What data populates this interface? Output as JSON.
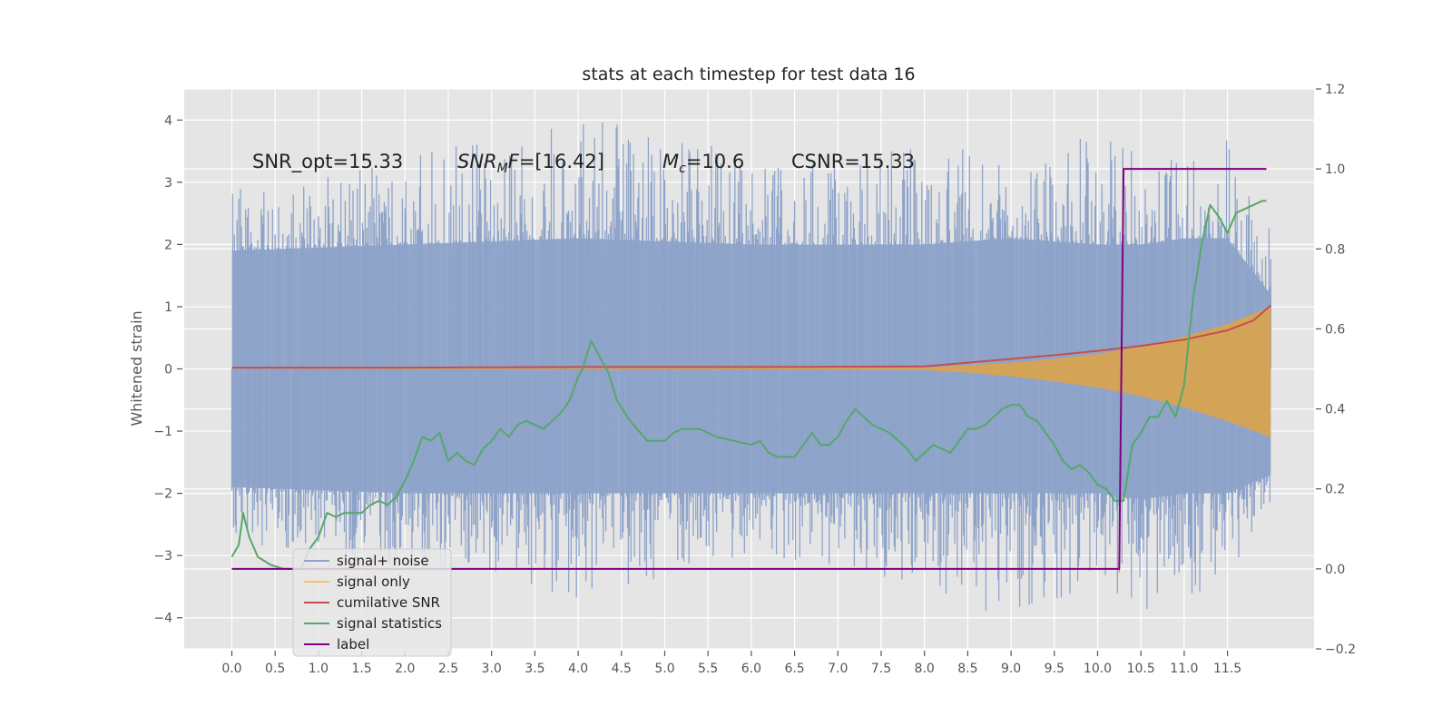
{
  "chart_data": {
    "type": "line",
    "title": "stats at each timestep for test data 16",
    "ylabel": "Whitened strain",
    "ylabel_right": "",
    "xlim": [
      -0.55,
      12.5
    ],
    "ylim": [
      -4.5,
      4.5
    ],
    "ylim_right": [
      -0.2,
      1.2
    ],
    "x_ticks": [
      0.0,
      0.5,
      1.0,
      1.5,
      2.0,
      2.5,
      3.0,
      3.5,
      4.0,
      4.5,
      5.0,
      5.5,
      6.0,
      6.5,
      7.0,
      7.5,
      8.0,
      8.5,
      9.0,
      9.5,
      10.0,
      10.5,
      11.0,
      11.5
    ],
    "x_tick_labels": [
      "0.0",
      "0.5",
      "1.0",
      "1.5",
      "2.0",
      "2.5",
      "3.0",
      "3.5",
      "4.0",
      "4.5",
      "5.0",
      "5.5",
      "6.0",
      "6.5",
      "7.0",
      "7.5",
      "8.0",
      "8.5",
      "9.0",
      "9.5",
      "10.0",
      "10.5",
      "11.0",
      "11.5"
    ],
    "y_ticks": [
      -4,
      -3,
      -2,
      -1,
      0,
      1,
      2,
      3,
      4
    ],
    "y_tick_labels": [
      "−4",
      "−3",
      "−2",
      "−1",
      "0",
      "1",
      "2",
      "3",
      "4"
    ],
    "y_right_ticks": [
      -0.2,
      0.0,
      0.2,
      0.4,
      0.6,
      0.8,
      1.0,
      1.2
    ],
    "y_right_tick_labels": [
      "−0.2",
      "0.0",
      "0.2",
      "0.4",
      "0.6",
      "0.8",
      "1.0",
      "1.2"
    ],
    "grid": true,
    "legend_position": "lower-left",
    "annotations": [
      {
        "id": "snr-opt",
        "prefix": "SNR_opt=15.33",
        "italic": "",
        "sub": "",
        "suffix": ""
      },
      {
        "id": "snr-mf",
        "prefix": "",
        "italic": "SNR",
        "sub": "M",
        "suffix": "F=[16.42]",
        "italic_tail": "F"
      },
      {
        "id": "mc",
        "prefix": "",
        "italic": "M",
        "sub": "c",
        "suffix": "=10.6"
      },
      {
        "id": "csnr",
        "prefix": "CSNR=15.33",
        "italic": "",
        "sub": "",
        "suffix": ""
      }
    ],
    "noise_envelope": {
      "x": [
        0.0,
        2.0,
        4.0,
        6.0,
        8.0,
        9.0,
        10.0,
        10.5,
        11.0,
        11.5,
        12.0
      ],
      "upper": [
        1.9,
        2.0,
        2.1,
        2.0,
        2.0,
        2.1,
        2.0,
        2.0,
        2.1,
        2.1,
        1.2
      ],
      "lower": [
        -1.9,
        -2.0,
        -2.0,
        -2.0,
        -2.0,
        -2.0,
        -2.0,
        -2.1,
        -2.0,
        -2.0,
        -1.7
      ],
      "upper_extreme": [
        2.9,
        3.4,
        4.1,
        3.5,
        3.7,
        3.3,
        3.8,
        3.6,
        3.6,
        3.7,
        2.4
      ],
      "lower_extreme": [
        -2.9,
        -3.2,
        -3.7,
        -3.0,
        -3.5,
        -4.1,
        -3.4,
        -3.9,
        -4.0,
        -3.4,
        -2.2
      ]
    },
    "series": [
      {
        "name": "signal+ noise",
        "color": "#8ea3c9",
        "axis": "left",
        "kind": "noise"
      },
      {
        "name": "signal only",
        "color": "#f5c36a",
        "axis": "left",
        "kind": "envelope",
        "x": [
          0.0,
          8.0,
          8.5,
          9.0,
          9.5,
          10.0,
          10.5,
          11.0,
          11.5,
          12.0
        ],
        "upper": [
          0.0,
          0.02,
          0.06,
          0.1,
          0.16,
          0.24,
          0.36,
          0.52,
          0.72,
          1.0
        ],
        "lower": [
          0.0,
          -0.02,
          -0.06,
          -0.12,
          -0.2,
          -0.3,
          -0.44,
          -0.62,
          -0.84,
          -1.1
        ]
      },
      {
        "name": "cumilative SNR",
        "color": "#c44e52",
        "axis": "left",
        "kind": "line",
        "x": [
          0.0,
          2.0,
          4.0,
          6.0,
          8.0,
          8.5,
          9.0,
          9.5,
          10.0,
          10.5,
          11.0,
          11.5,
          11.8,
          12.0
        ],
        "y": [
          0.02,
          0.02,
          0.03,
          0.03,
          0.04,
          0.1,
          0.16,
          0.22,
          0.29,
          0.37,
          0.47,
          0.62,
          0.78,
          1.02
        ]
      },
      {
        "name": "signal statistics",
        "color": "#55a868",
        "axis": "right",
        "kind": "line",
        "x": [
          0.0,
          0.08,
          0.13,
          0.2,
          0.3,
          0.45,
          0.6,
          0.8,
          0.9,
          1.0,
          1.1,
          1.2,
          1.3,
          1.4,
          1.5,
          1.6,
          1.7,
          1.8,
          1.9,
          2.0,
          2.1,
          2.2,
          2.3,
          2.4,
          2.5,
          2.6,
          2.7,
          2.8,
          2.9,
          3.0,
          3.1,
          3.2,
          3.3,
          3.4,
          3.5,
          3.6,
          3.7,
          3.8,
          3.9,
          4.0,
          4.05,
          4.15,
          4.25,
          4.35,
          4.45,
          4.6,
          4.8,
          5.0,
          5.1,
          5.2,
          5.3,
          5.4,
          5.5,
          5.6,
          5.8,
          6.0,
          6.1,
          6.2,
          6.3,
          6.5,
          6.6,
          6.7,
          6.8,
          6.9,
          7.0,
          7.1,
          7.2,
          7.3,
          7.4,
          7.6,
          7.8,
          7.9,
          8.0,
          8.1,
          8.2,
          8.3,
          8.4,
          8.5,
          8.6,
          8.7,
          8.8,
          8.9,
          9.0,
          9.1,
          9.2,
          9.3,
          9.4,
          9.5,
          9.6,
          9.7,
          9.8,
          9.9,
          10.0,
          10.1,
          10.2,
          10.3,
          10.4,
          10.5,
          10.6,
          10.7,
          10.8,
          10.9,
          11.0,
          11.1,
          11.2,
          11.3,
          11.4,
          11.5,
          11.6,
          11.7,
          11.8,
          11.9,
          11.95
        ],
        "y": [
          0.03,
          0.06,
          0.14,
          0.08,
          0.03,
          0.01,
          0.0,
          0.0,
          0.05,
          0.08,
          0.14,
          0.13,
          0.14,
          0.14,
          0.14,
          0.16,
          0.17,
          0.16,
          0.18,
          0.22,
          0.27,
          0.33,
          0.32,
          0.34,
          0.27,
          0.29,
          0.27,
          0.26,
          0.3,
          0.32,
          0.35,
          0.33,
          0.36,
          0.37,
          0.36,
          0.35,
          0.37,
          0.39,
          0.42,
          0.48,
          0.5,
          0.57,
          0.53,
          0.49,
          0.42,
          0.37,
          0.32,
          0.32,
          0.34,
          0.35,
          0.35,
          0.35,
          0.34,
          0.33,
          0.32,
          0.31,
          0.32,
          0.29,
          0.28,
          0.28,
          0.31,
          0.34,
          0.31,
          0.31,
          0.33,
          0.37,
          0.4,
          0.38,
          0.36,
          0.34,
          0.3,
          0.27,
          0.29,
          0.31,
          0.3,
          0.29,
          0.32,
          0.35,
          0.35,
          0.36,
          0.38,
          0.4,
          0.41,
          0.41,
          0.38,
          0.37,
          0.34,
          0.31,
          0.27,
          0.25,
          0.26,
          0.24,
          0.21,
          0.2,
          0.17,
          0.17,
          0.31,
          0.34,
          0.38,
          0.38,
          0.42,
          0.38,
          0.46,
          0.67,
          0.81,
          0.91,
          0.88,
          0.84,
          0.89,
          0.9,
          0.91,
          0.92,
          0.92
        ]
      },
      {
        "name": "label",
        "color": "#800080",
        "axis": "right",
        "kind": "line",
        "x": [
          0.0,
          10.25,
          10.3,
          11.95
        ],
        "y": [
          0.0,
          0.0,
          1.0,
          1.0
        ]
      }
    ]
  }
}
